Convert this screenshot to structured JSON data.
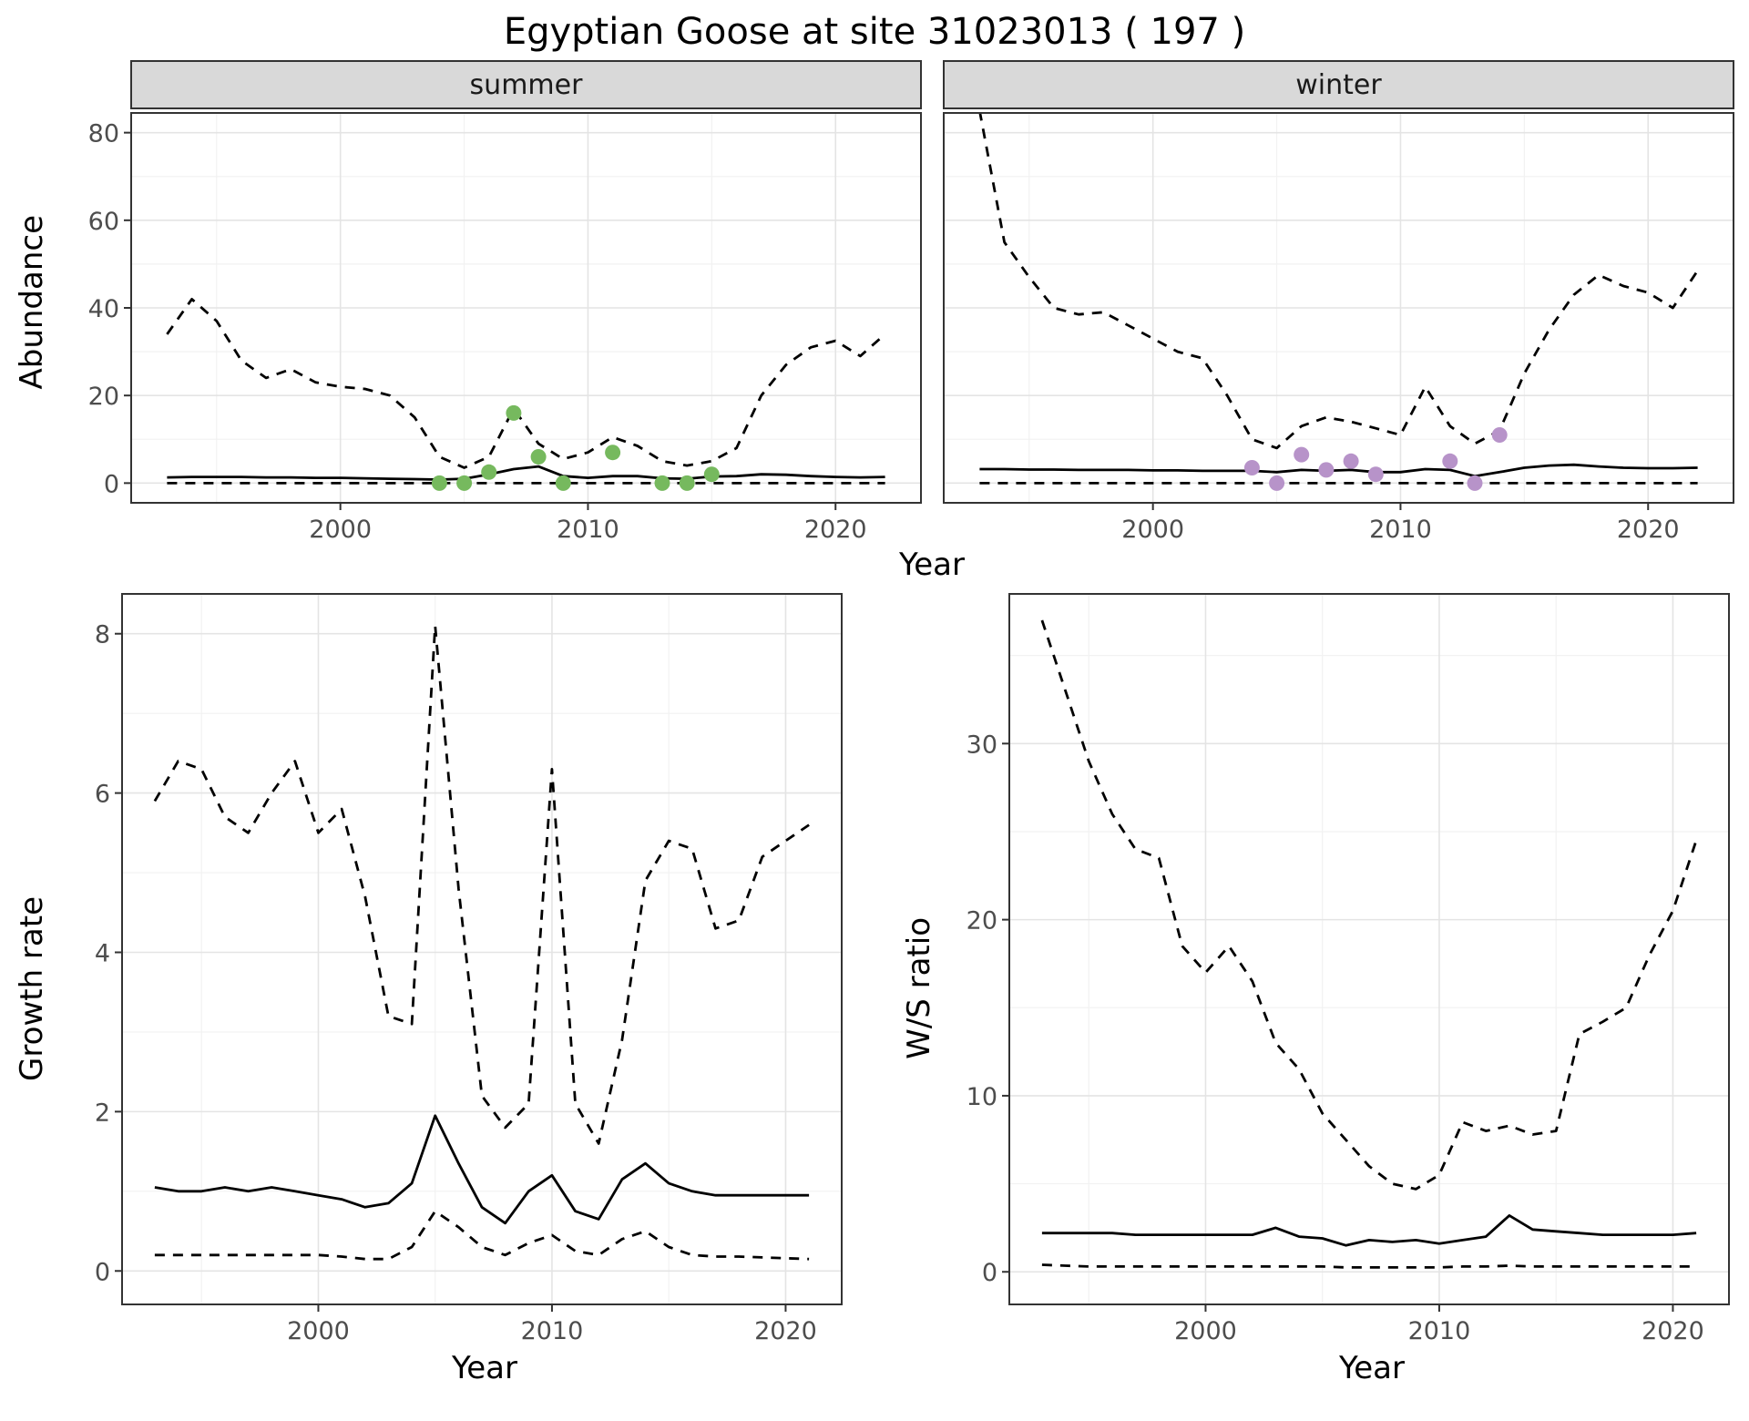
{
  "title": "Egyptian Goose at site 31023013 ( 197 )",
  "top_figure": {
    "ylabel": "Abundance",
    "xlabel": "Year",
    "facets": [
      {
        "label": "summer"
      },
      {
        "label": "winter"
      }
    ]
  },
  "bottom_left_figure": {
    "ylabel": "Growth rate",
    "xlabel": "Year"
  },
  "bottom_right_figure": {
    "ylabel": "W/S ratio",
    "xlabel": "Year"
  },
  "colors": {
    "line": "#000000",
    "summer_points": "#76b95e",
    "winter_points": "#b793c9",
    "grid_major": "#e4e4e4",
    "grid_minor": "#f2f2f2",
    "strip_bg": "#d9d9d9",
    "panel_border": "#333333",
    "tick_label": "#4d4d4d",
    "axis_tick": "#333333"
  },
  "chart_data": [
    {
      "id": "abundance-summer",
      "type": "line",
      "facet": "summer",
      "xlabel": "Year",
      "ylabel": "Abundance",
      "xlim": [
        1991.55,
        2023.45
      ],
      "ylim": [
        -4.5,
        84.5
      ],
      "xticks": [
        2000,
        2010,
        2020
      ],
      "yticks": [
        0,
        20,
        40,
        60,
        80
      ],
      "years": [
        1993,
        1994,
        1995,
        1996,
        1997,
        1998,
        1999,
        2000,
        2001,
        2002,
        2003,
        2004,
        2005,
        2006,
        2007,
        2008,
        2009,
        2010,
        2011,
        2012,
        2013,
        2014,
        2015,
        2016,
        2017,
        2018,
        2019,
        2020,
        2021,
        2022
      ],
      "series": [
        {
          "name": "upper_ci",
          "style": "dashed",
          "color": "#000000",
          "values": [
            34,
            42,
            37,
            28,
            24,
            26,
            23,
            22,
            21.5,
            20,
            15,
            6,
            3.5,
            6,
            17,
            9,
            5.5,
            7,
            10.5,
            8.5,
            5,
            4,
            5,
            8,
            20,
            27,
            31,
            32.5,
            29,
            34
          ]
        },
        {
          "name": "median",
          "style": "solid",
          "color": "#000000",
          "values": [
            1.3,
            1.4,
            1.4,
            1.4,
            1.3,
            1.3,
            1.2,
            1.2,
            1.1,
            1,
            0.9,
            0.8,
            1,
            2,
            3.2,
            3.8,
            1.6,
            1.2,
            1.6,
            1.6,
            1.1,
            1,
            1.5,
            1.6,
            2,
            1.9,
            1.6,
            1.4,
            1.3,
            1.4
          ]
        },
        {
          "name": "lower_ci",
          "style": "dashed",
          "color": "#000000",
          "values": [
            0,
            0,
            0,
            0,
            0,
            0,
            0,
            0,
            0,
            0,
            0,
            0,
            0,
            0,
            0,
            0,
            0,
            0,
            0,
            0,
            0,
            0,
            0,
            0,
            0,
            0,
            0,
            0,
            0,
            0
          ]
        },
        {
          "name": "observations",
          "style": "points",
          "color": "#76b95e",
          "x": [
            2004,
            2005,
            2006,
            2007,
            2008,
            2009,
            2011,
            2013,
            2014,
            2015
          ],
          "values": [
            0,
            0,
            2.5,
            16,
            6,
            0,
            7,
            0,
            0,
            2
          ]
        }
      ]
    },
    {
      "id": "abundance-winter",
      "type": "line",
      "facet": "winter",
      "xlabel": "Year",
      "ylabel": "Abundance",
      "xlim": [
        1991.55,
        2023.45
      ],
      "ylim": [
        -4.5,
        84.5
      ],
      "xticks": [
        2000,
        2010,
        2020
      ],
      "yticks": [
        0,
        20,
        40,
        60,
        80
      ],
      "years": [
        1993,
        1994,
        1995,
        1996,
        1997,
        1998,
        1999,
        2000,
        2001,
        2002,
        2003,
        2004,
        2005,
        2006,
        2007,
        2008,
        2009,
        2010,
        2011,
        2012,
        2013,
        2014,
        2015,
        2016,
        2017,
        2018,
        2019,
        2020,
        2021,
        2022
      ],
      "series": [
        {
          "name": "upper_ci",
          "style": "dashed",
          "color": "#000000",
          "values": [
            85,
            55,
            47,
            40,
            38.5,
            39,
            36,
            33,
            30,
            28.5,
            20,
            10,
            8,
            13,
            15,
            14,
            12.5,
            11,
            22,
            13,
            9,
            12,
            25,
            35,
            43,
            47.5,
            45,
            43.5,
            40,
            48.5
          ]
        },
        {
          "name": "median",
          "style": "solid",
          "color": "#000000",
          "values": [
            3.2,
            3.2,
            3.1,
            3.1,
            3,
            3,
            3,
            2.9,
            2.9,
            2.8,
            2.8,
            2.8,
            2.5,
            3,
            2.8,
            3,
            2.5,
            2.5,
            3.2,
            3,
            1.6,
            2.5,
            3.5,
            4,
            4.2,
            3.8,
            3.5,
            3.4,
            3.4,
            3.5
          ]
        },
        {
          "name": "lower_ci",
          "style": "dashed",
          "color": "#000000",
          "values": [
            0,
            0,
            0,
            0,
            0,
            0,
            0,
            0,
            0,
            0,
            0,
            0,
            0,
            0,
            0,
            0,
            0,
            0,
            0,
            0,
            0,
            0,
            0,
            0,
            0,
            0,
            0,
            0,
            0,
            0
          ]
        },
        {
          "name": "observations",
          "style": "points",
          "color": "#b793c9",
          "x": [
            2004,
            2005,
            2006,
            2007,
            2008,
            2009,
            2012,
            2013,
            2014
          ],
          "values": [
            3.5,
            0,
            6.5,
            3,
            5,
            2,
            5,
            0,
            11
          ]
        }
      ]
    },
    {
      "id": "growth-rate",
      "type": "line",
      "xlabel": "Year",
      "ylabel": "Growth rate",
      "xlim": [
        1991.6,
        2022.4
      ],
      "ylim": [
        -0.42,
        8.5
      ],
      "xticks": [
        2000,
        2010,
        2020
      ],
      "yticks": [
        0,
        2,
        4,
        6,
        8
      ],
      "years": [
        1993,
        1994,
        1995,
        1996,
        1997,
        1998,
        1999,
        2000,
        2001,
        2002,
        2003,
        2004,
        2005,
        2006,
        2007,
        2008,
        2009,
        2010,
        2011,
        2012,
        2013,
        2014,
        2015,
        2016,
        2017,
        2018,
        2019,
        2020,
        2021
      ],
      "series": [
        {
          "name": "upper_ci",
          "style": "dashed",
          "color": "#000000",
          "values": [
            5.9,
            6.4,
            6.3,
            5.7,
            5.5,
            6,
            6.4,
            5.5,
            5.8,
            4.7,
            3.2,
            3.1,
            8.1,
            4.8,
            2.2,
            1.8,
            2.1,
            6.3,
            2.1,
            1.6,
            2.9,
            4.9,
            5.4,
            5.3,
            4.3,
            4.4,
            5.2,
            5.4,
            5.6
          ]
        },
        {
          "name": "median",
          "style": "solid",
          "color": "#000000",
          "values": [
            1.05,
            1,
            1,
            1.05,
            1,
            1.05,
            1,
            0.95,
            0.9,
            0.8,
            0.85,
            1.1,
            1.95,
            1.35,
            0.8,
            0.6,
            1,
            1.2,
            0.75,
            0.65,
            1.15,
            1.35,
            1.1,
            1,
            0.95,
            0.95,
            0.95,
            0.95,
            0.95
          ]
        },
        {
          "name": "lower_ci",
          "style": "dashed",
          "color": "#000000",
          "values": [
            0.2,
            0.2,
            0.2,
            0.2,
            0.2,
            0.2,
            0.2,
            0.2,
            0.18,
            0.15,
            0.15,
            0.3,
            0.75,
            0.55,
            0.3,
            0.2,
            0.35,
            0.45,
            0.25,
            0.2,
            0.4,
            0.5,
            0.3,
            0.2,
            0.18,
            0.18,
            0.17,
            0.16,
            0.15
          ]
        }
      ]
    },
    {
      "id": "ws-ratio",
      "type": "line",
      "xlabel": "Year",
      "ylabel": "W/S ratio",
      "xlim": [
        1991.6,
        2022.4
      ],
      "ylim": [
        -1.85,
        38.5
      ],
      "xticks": [
        2000,
        2010,
        2020
      ],
      "yticks": [
        0,
        10,
        20,
        30
      ],
      "years": [
        1993,
        1994,
        1995,
        1996,
        1997,
        1998,
        1999,
        2000,
        2001,
        2002,
        2003,
        2004,
        2005,
        2006,
        2007,
        2008,
        2009,
        2010,
        2011,
        2012,
        2013,
        2014,
        2015,
        2016,
        2017,
        2018,
        2019,
        2020,
        2021
      ],
      "series": [
        {
          "name": "upper_ci",
          "style": "dashed",
          "color": "#000000",
          "values": [
            37,
            33,
            29,
            26,
            24,
            23.5,
            18.5,
            17,
            18.5,
            16.5,
            13,
            11.5,
            9,
            7.5,
            6,
            5,
            4.7,
            5.5,
            8.5,
            8,
            8.3,
            7.8,
            8,
            13.5,
            14.2,
            15,
            18,
            20.5,
            24.5
          ]
        },
        {
          "name": "median",
          "style": "solid",
          "color": "#000000",
          "values": [
            2.2,
            2.2,
            2.2,
            2.2,
            2.1,
            2.1,
            2.1,
            2.1,
            2.1,
            2.1,
            2.5,
            2,
            1.9,
            1.5,
            1.8,
            1.7,
            1.8,
            1.6,
            1.8,
            2,
            3.2,
            2.4,
            2.3,
            2.2,
            2.1,
            2.1,
            2.1,
            2.1,
            2.2
          ]
        },
        {
          "name": "lower_ci",
          "style": "dashed",
          "color": "#000000",
          "values": [
            0.4,
            0.35,
            0.3,
            0.3,
            0.3,
            0.3,
            0.3,
            0.3,
            0.3,
            0.3,
            0.3,
            0.3,
            0.3,
            0.25,
            0.25,
            0.25,
            0.25,
            0.25,
            0.3,
            0.3,
            0.35,
            0.3,
            0.3,
            0.3,
            0.3,
            0.3,
            0.3,
            0.3,
            0.3
          ]
        }
      ]
    }
  ]
}
